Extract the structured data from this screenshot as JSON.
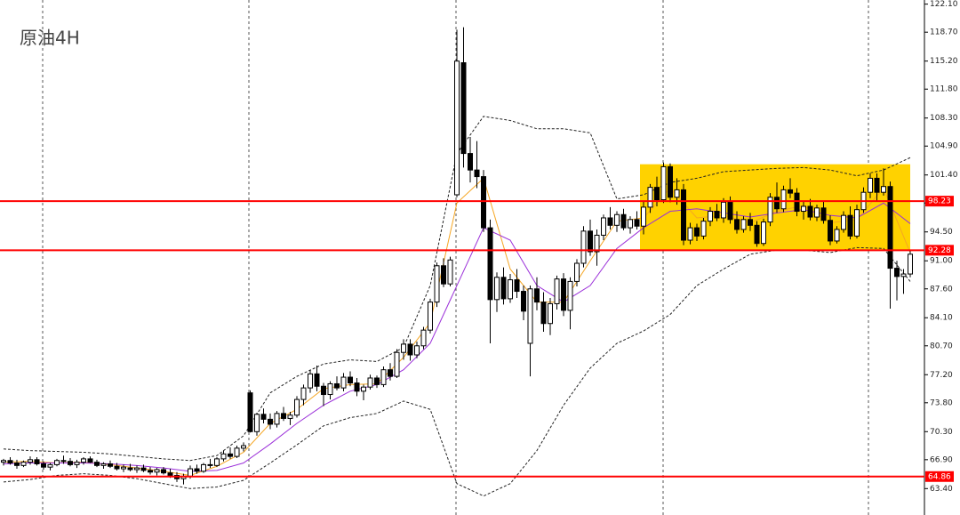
{
  "chart_data": {
    "type": "candlestick",
    "title": "原油4H",
    "ylim": [
      60.2,
      122.6
    ],
    "yticks": [
      {
        "value": 122.1,
        "label": "122.10"
      },
      {
        "value": 118.7,
        "label": "118.70"
      },
      {
        "value": 115.2,
        "label": "115.20"
      },
      {
        "value": 111.8,
        "label": "111.80"
      },
      {
        "value": 108.3,
        "label": "108.30"
      },
      {
        "value": 104.9,
        "label": "104.90"
      },
      {
        "value": 101.4,
        "label": "101.40"
      },
      {
        "value": 98.0,
        "label": "98.00"
      },
      {
        "value": 94.5,
        "label": "94.50"
      },
      {
        "value": 91.0,
        "label": "91.00"
      },
      {
        "value": 87.6,
        "label": "87.60"
      },
      {
        "value": 84.1,
        "label": "84.10"
      },
      {
        "value": 80.7,
        "label": "80.70"
      },
      {
        "value": 77.2,
        "label": "77.20"
      },
      {
        "value": 73.8,
        "label": "73.80"
      },
      {
        "value": 70.3,
        "label": "70.30"
      },
      {
        "value": 66.9,
        "label": "66.90"
      },
      {
        "value": 63.4,
        "label": "63.40"
      }
    ],
    "levels": [
      98.23,
      92.28,
      64.86
    ],
    "level_color": "#ff0000",
    "zone": {
      "from": 96,
      "to": 136,
      "low": 92.3,
      "high": 102.7,
      "color": "#ffd200"
    },
    "ohlc": [
      [
        66.6,
        67.0,
        66.2,
        66.8
      ],
      [
        66.8,
        67.2,
        66.3,
        66.5
      ],
      [
        66.5,
        66.9,
        65.8,
        66.2
      ],
      [
        66.2,
        66.8,
        66.0,
        66.6
      ],
      [
        66.6,
        67.3,
        66.3,
        66.9
      ],
      [
        66.9,
        67.2,
        66.2,
        66.4
      ],
      [
        66.4,
        66.7,
        65.7,
        66.0
      ],
      [
        66.0,
        66.5,
        65.6,
        66.3
      ],
      [
        66.3,
        67.0,
        66.1,
        66.8
      ],
      [
        66.8,
        67.4,
        66.4,
        66.7
      ],
      [
        66.7,
        67.1,
        66.1,
        66.3
      ],
      [
        66.3,
        66.9,
        65.9,
        66.6
      ],
      [
        66.6,
        67.2,
        66.3,
        67.0
      ],
      [
        67.0,
        67.3,
        66.5,
        66.6
      ],
      [
        66.6,
        66.9,
        66.0,
        66.2
      ],
      [
        66.2,
        66.6,
        65.8,
        66.4
      ],
      [
        66.4,
        66.8,
        65.9,
        66.1
      ],
      [
        66.1,
        66.5,
        65.6,
        65.8
      ],
      [
        65.8,
        66.3,
        65.4,
        66.0
      ],
      [
        65.9,
        66.4,
        65.5,
        65.7
      ],
      [
        65.7,
        66.2,
        65.3,
        65.9
      ],
      [
        65.9,
        66.3,
        65.4,
        65.6
      ],
      [
        65.6,
        66.0,
        65.1,
        65.4
      ],
      [
        65.4,
        65.9,
        65.0,
        65.7
      ],
      [
        65.7,
        66.0,
        65.1,
        65.3
      ],
      [
        65.3,
        65.8,
        64.7,
        65.0
      ],
      [
        65.0,
        65.4,
        64.2,
        64.6
      ],
      [
        64.6,
        65.2,
        63.9,
        64.9
      ],
      [
        64.9,
        66.2,
        64.6,
        65.8
      ],
      [
        65.8,
        66.3,
        65.2,
        65.5
      ],
      [
        65.5,
        66.5,
        65.3,
        66.3
      ],
      [
        66.3,
        67.0,
        65.9,
        66.2
      ],
      [
        66.2,
        67.2,
        66.0,
        67.0
      ],
      [
        67.0,
        68.0,
        66.7,
        67.6
      ],
      [
        67.6,
        68.4,
        67.0,
        67.3
      ],
      [
        67.3,
        68.6,
        67.1,
        68.3
      ],
      [
        68.3,
        69.0,
        67.9,
        68.6
      ],
      [
        75.0,
        75.3,
        70.2,
        70.3
      ],
      [
        70.3,
        72.6,
        69.8,
        72.4
      ],
      [
        72.4,
        73.1,
        71.3,
        71.8
      ],
      [
        71.8,
        72.5,
        70.6,
        71.2
      ],
      [
        71.2,
        72.8,
        70.8,
        72.5
      ],
      [
        72.5,
        73.3,
        71.6,
        71.9
      ],
      [
        71.9,
        72.7,
        71.1,
        72.3
      ],
      [
        72.3,
        74.6,
        72.0,
        74.2
      ],
      [
        74.2,
        76.0,
        73.5,
        75.6
      ],
      [
        75.6,
        77.8,
        75.0,
        77.3
      ],
      [
        77.3,
        78.3,
        75.2,
        75.8
      ],
      [
        75.8,
        76.2,
        73.4,
        74.8
      ],
      [
        74.8,
        76.4,
        74.2,
        76.1
      ],
      [
        76.1,
        77.0,
        75.3,
        75.6
      ],
      [
        75.6,
        77.4,
        75.2,
        76.9
      ],
      [
        76.9,
        77.6,
        75.8,
        76.2
      ],
      [
        76.2,
        76.8,
        74.6,
        75.2
      ],
      [
        75.2,
        76.0,
        74.1,
        75.7
      ],
      [
        75.7,
        77.2,
        75.4,
        76.8
      ],
      [
        76.8,
        77.1,
        75.6,
        76.0
      ],
      [
        76.0,
        78.2,
        75.7,
        77.8
      ],
      [
        77.8,
        78.6,
        76.5,
        77.0
      ],
      [
        77.0,
        80.3,
        76.8,
        79.9
      ],
      [
        79.9,
        81.5,
        79.0,
        80.9
      ],
      [
        80.9,
        81.5,
        78.9,
        79.6
      ],
      [
        79.6,
        81.2,
        79.2,
        80.7
      ],
      [
        80.7,
        83.0,
        80.3,
        82.6
      ],
      [
        82.6,
        86.4,
        82.2,
        86.0
      ],
      [
        86.0,
        90.8,
        85.4,
        90.4
      ],
      [
        90.4,
        91.3,
        87.8,
        88.2
      ],
      [
        88.2,
        91.5,
        87.9,
        91.1
      ],
      [
        99.0,
        119.0,
        98.7,
        115.2
      ],
      [
        115.0,
        119.3,
        102.3,
        104.0
      ],
      [
        104.0,
        106.0,
        100.5,
        102.0
      ],
      [
        102.0,
        105.5,
        99.8,
        101.2
      ],
      [
        101.2,
        102.0,
        94.5,
        95.0
      ],
      [
        95.0,
        96.0,
        81.0,
        86.3
      ],
      [
        86.3,
        89.6,
        84.8,
        89.0
      ],
      [
        89.0,
        90.2,
        85.7,
        86.4
      ],
      [
        86.4,
        89.4,
        85.9,
        88.7
      ],
      [
        88.7,
        90.0,
        86.5,
        87.3
      ],
      [
        87.3,
        88.0,
        83.8,
        84.9
      ],
      [
        81.0,
        88.0,
        77.0,
        87.6
      ],
      [
        87.6,
        89.0,
        85.0,
        86.0
      ],
      [
        86.0,
        87.2,
        82.4,
        83.4
      ],
      [
        83.4,
        86.5,
        82.0,
        85.8
      ],
      [
        85.8,
        89.2,
        85.1,
        88.8
      ],
      [
        88.8,
        89.5,
        84.3,
        85.0
      ],
      [
        85.0,
        89.0,
        82.7,
        88.5
      ],
      [
        88.5,
        91.2,
        87.9,
        90.7
      ],
      [
        90.7,
        95.2,
        90.2,
        94.6
      ],
      [
        94.6,
        96.0,
        91.6,
        92.1
      ],
      [
        92.1,
        94.8,
        90.4,
        94.1
      ],
      [
        94.1,
        96.6,
        93.5,
        96.2
      ],
      [
        96.2,
        97.5,
        94.8,
        95.3
      ],
      [
        95.3,
        97.0,
        94.5,
        96.6
      ],
      [
        96.6,
        97.3,
        94.7,
        95.0
      ],
      [
        95.0,
        96.4,
        94.3,
        96.0
      ],
      [
        96.0,
        97.0,
        94.8,
        95.2
      ],
      [
        95.2,
        98.3,
        94.2,
        97.5
      ],
      [
        97.5,
        100.3,
        96.8,
        99.9
      ],
      [
        99.9,
        101.2,
        97.6,
        98.4
      ],
      [
        98.4,
        102.9,
        98.0,
        102.4
      ],
      [
        102.4,
        102.8,
        98.1,
        98.7
      ],
      [
        98.7,
        101.0,
        97.8,
        99.6
      ],
      [
        99.6,
        100.3,
        92.9,
        93.5
      ],
      [
        93.5,
        95.6,
        93.0,
        95.0
      ],
      [
        95.0,
        95.5,
        93.4,
        94.0
      ],
      [
        94.0,
        96.2,
        93.6,
        95.8
      ],
      [
        95.8,
        97.5,
        95.2,
        97.0
      ],
      [
        97.0,
        97.9,
        95.8,
        96.2
      ],
      [
        96.2,
        98.6,
        95.6,
        98.1
      ],
      [
        98.1,
        98.8,
        95.5,
        96.0
      ],
      [
        96.0,
        97.0,
        94.3,
        94.8
      ],
      [
        94.8,
        96.4,
        94.4,
        96.0
      ],
      [
        96.0,
        96.8,
        94.6,
        95.3
      ],
      [
        95.3,
        95.8,
        92.7,
        93.1
      ],
      [
        93.1,
        96.1,
        92.8,
        95.7
      ],
      [
        95.7,
        99.2,
        95.2,
        98.7
      ],
      [
        98.7,
        100.5,
        96.8,
        97.3
      ],
      [
        97.3,
        100.1,
        96.9,
        99.6
      ],
      [
        99.6,
        101.0,
        98.6,
        99.2
      ],
      [
        99.2,
        99.8,
        96.4,
        97.0
      ],
      [
        97.0,
        98.2,
        96.0,
        97.6
      ],
      [
        97.6,
        98.5,
        95.9,
        96.3
      ],
      [
        96.3,
        97.8,
        95.8,
        97.4
      ],
      [
        97.4,
        98.3,
        95.5,
        95.9
      ],
      [
        95.9,
        96.5,
        92.9,
        93.4
      ],
      [
        93.4,
        95.2,
        93.1,
        94.8
      ],
      [
        94.8,
        97.0,
        94.4,
        96.5
      ],
      [
        96.5,
        97.6,
        93.6,
        94.0
      ],
      [
        94.0,
        97.8,
        93.7,
        97.2
      ],
      [
        97.2,
        99.9,
        96.8,
        99.3
      ],
      [
        99.3,
        101.6,
        98.6,
        101.0
      ],
      [
        101.0,
        101.6,
        98.3,
        99.3
      ],
      [
        99.3,
        102.2,
        98.9,
        100.0
      ],
      [
        100.0,
        100.6,
        85.2,
        90.1
      ],
      [
        90.1,
        91.0,
        86.2,
        89.1
      ],
      [
        89.1,
        90.0,
        87.0,
        89.4
      ],
      [
        89.4,
        92.3,
        89.0,
        91.8
      ]
    ],
    "overlay_x": [
      0,
      4,
      8,
      12,
      16,
      20,
      24,
      28,
      32,
      36,
      40,
      44,
      48,
      52,
      56,
      60,
      64,
      68,
      72,
      76,
      80,
      84,
      88,
      92,
      96,
      100,
      104,
      108,
      112,
      116,
      120,
      124,
      128,
      132,
      136
    ],
    "overlays": [
      {
        "color": "#f5a623",
        "dash": false,
        "values": [
          66.6,
          66.7,
          66.5,
          66.6,
          66.3,
          65.9,
          65.5,
          65.0,
          66.1,
          67.8,
          71.3,
          73.0,
          75.5,
          76.0,
          76.1,
          79.3,
          83.5,
          98.0,
          101.0,
          90.0,
          86.0,
          86.0,
          91.0,
          95.8,
          96.2,
          99.8,
          96.2,
          96.5,
          95.6,
          97.0,
          97.7,
          95.6,
          96.0,
          99.8,
          92.0
        ]
      },
      {
        "color": "#9b30d9",
        "dash": false,
        "values": [
          66.4,
          66.5,
          66.5,
          66.5,
          66.4,
          66.2,
          65.9,
          65.5,
          65.6,
          66.5,
          68.8,
          71.3,
          73.5,
          75.2,
          76.0,
          77.8,
          81.0,
          88.0,
          95.0,
          93.5,
          88.0,
          86.0,
          88.0,
          92.5,
          95.0,
          97.0,
          97.3,
          96.8,
          96.3,
          96.8,
          97.2,
          96.5,
          96.2,
          98.0,
          95.5
        ]
      },
      {
        "color": "#222222",
        "dash": true,
        "values": [
          68.2,
          68.0,
          67.9,
          67.8,
          67.6,
          67.3,
          67.0,
          66.8,
          67.4,
          69.8,
          75.0,
          77.0,
          78.5,
          79.0,
          78.8,
          80.5,
          88.0,
          104.0,
          108.5,
          108.0,
          107.0,
          107.0,
          106.5,
          98.5,
          99.0,
          100.5,
          101.0,
          101.8,
          102.0,
          102.2,
          102.3,
          102.0,
          101.3,
          102.0,
          103.5
        ]
      },
      {
        "color": "#222222",
        "dash": true,
        "values": [
          64.2,
          64.5,
          65.0,
          65.2,
          65.0,
          64.6,
          64.0,
          63.4,
          63.6,
          64.4,
          66.5,
          68.7,
          71.0,
          72.0,
          72.5,
          74.0,
          73.0,
          64.0,
          62.5,
          64.0,
          68.0,
          73.5,
          78.0,
          81.0,
          82.5,
          84.5,
          88.0,
          90.0,
          91.8,
          92.3,
          92.3,
          92.0,
          92.6,
          92.5,
          88.5
        ]
      }
    ]
  }
}
